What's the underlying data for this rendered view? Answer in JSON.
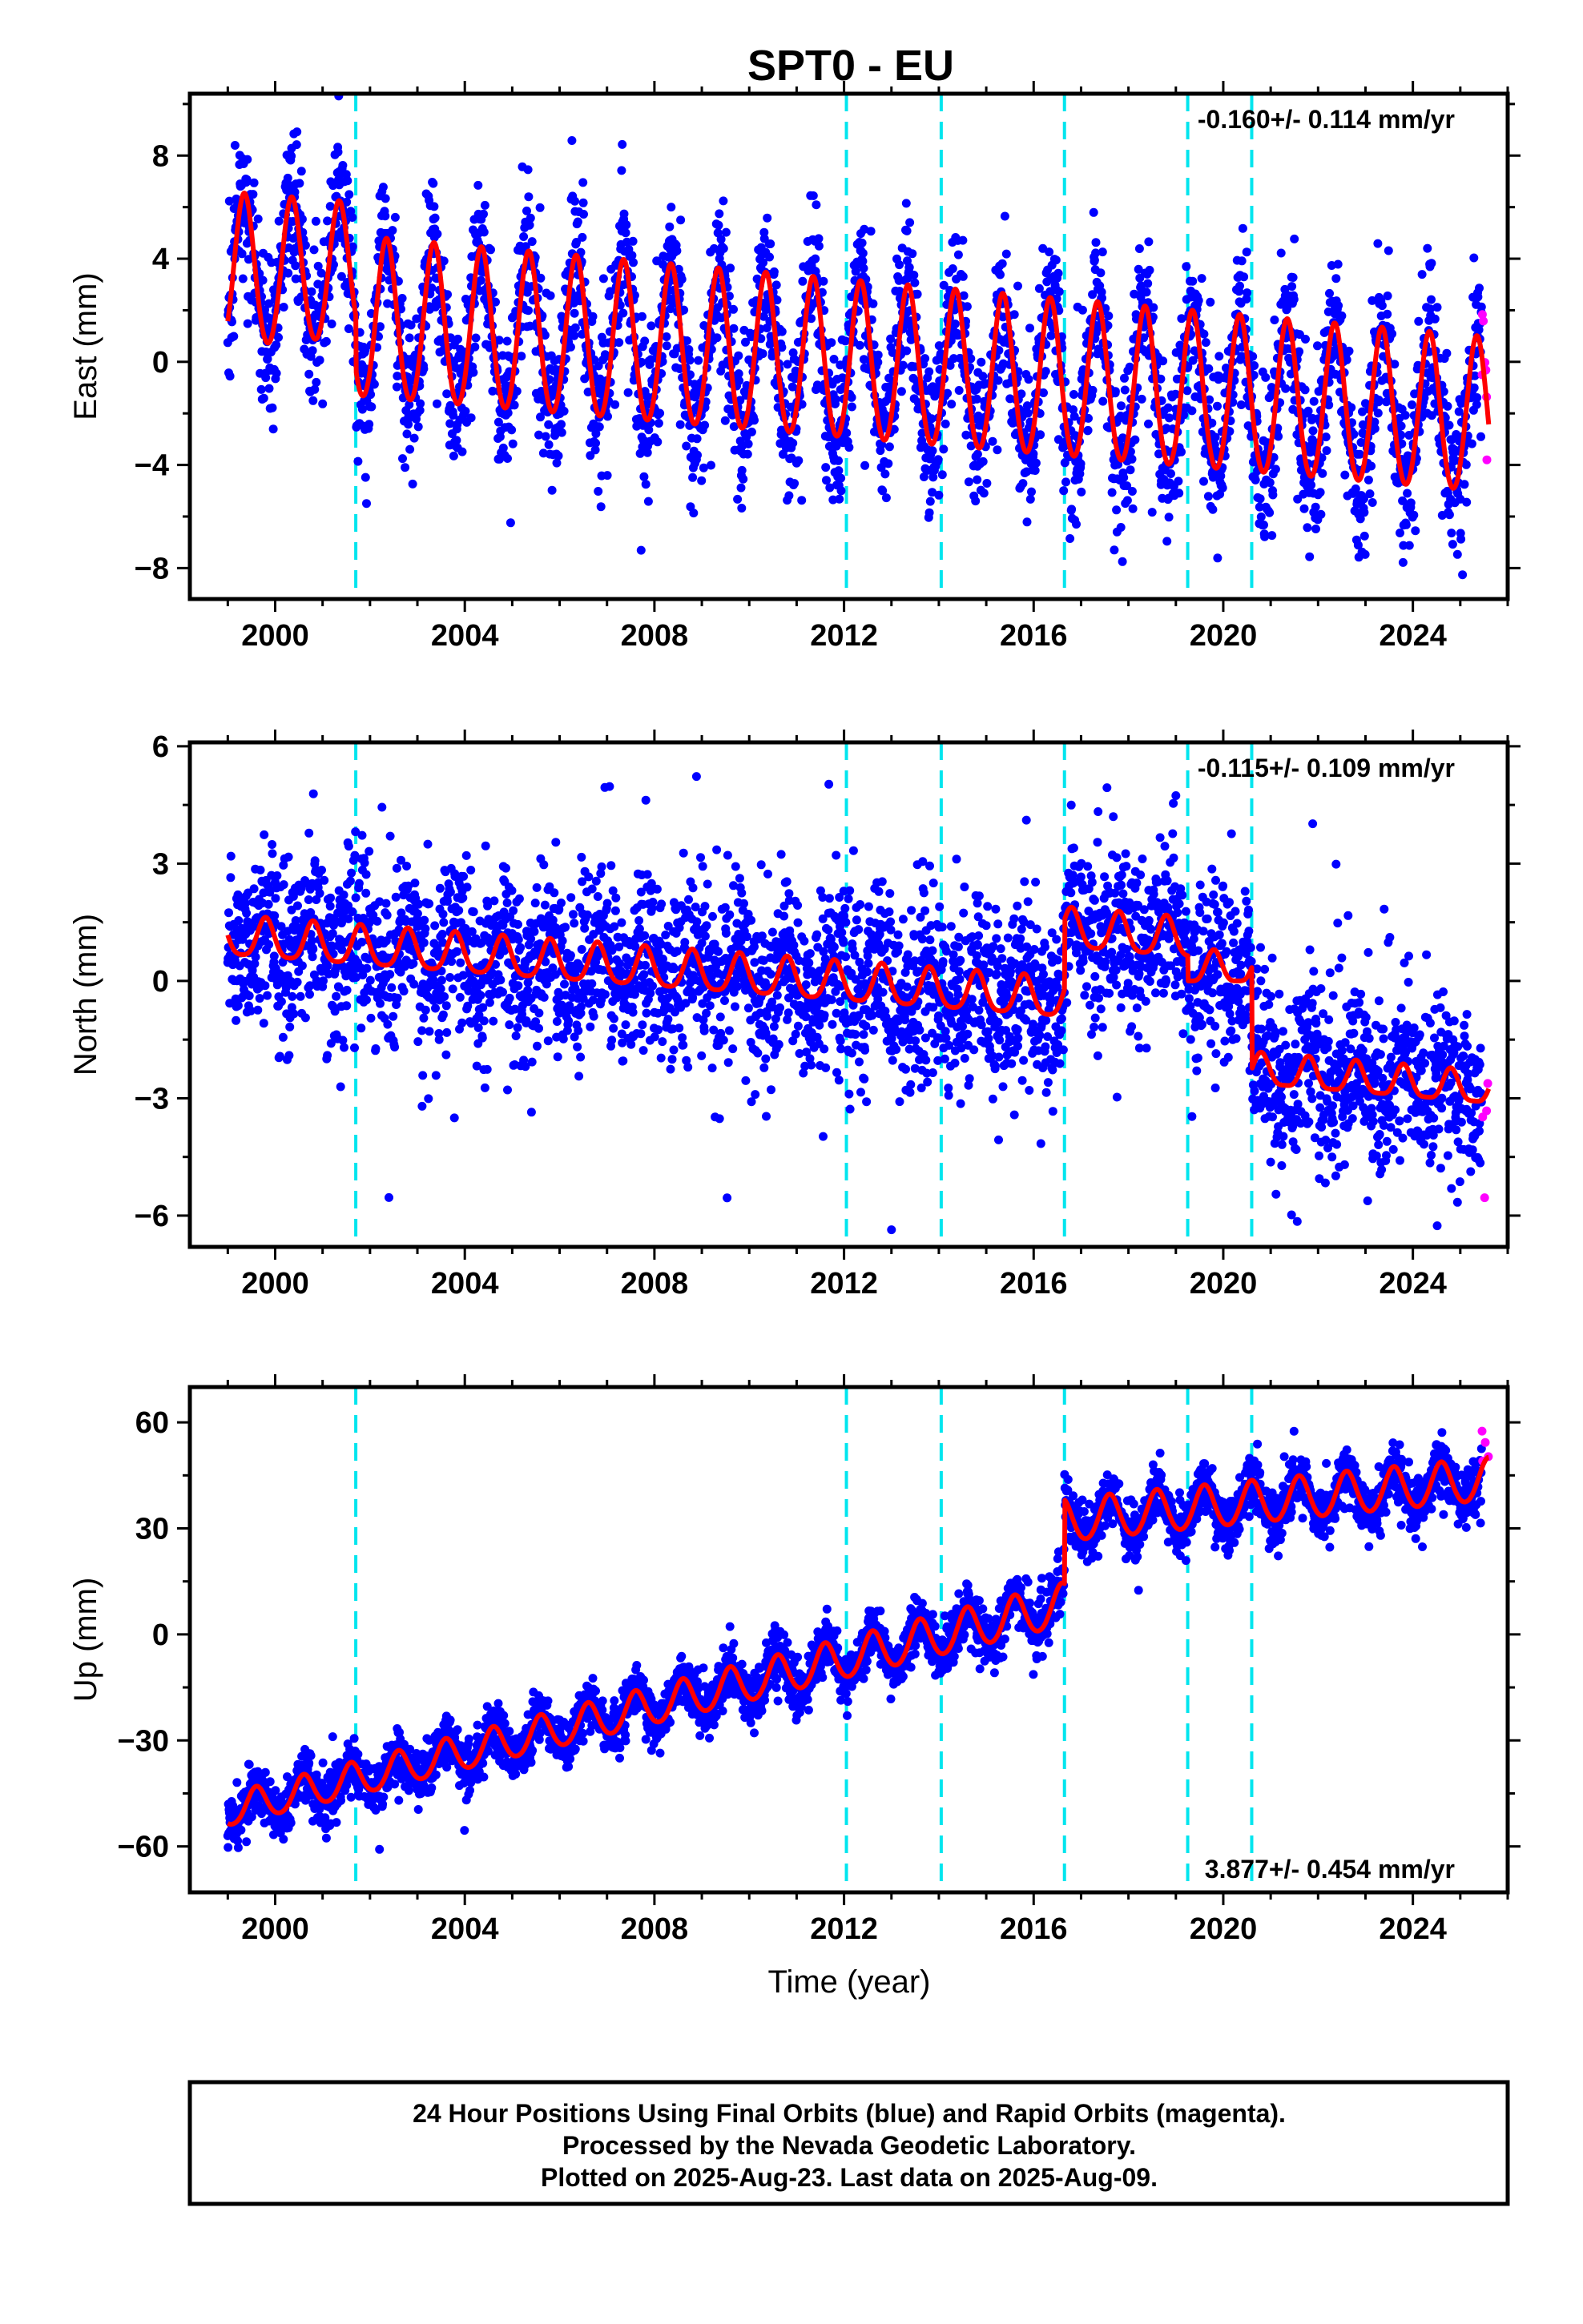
{
  "chart_data": {
    "type": "scatter",
    "title": "SPT0 - EU",
    "xlabel": "Time (year)",
    "xlim": [
      1998.2,
      2026.0
    ],
    "x_ticks": [
      2000,
      2004,
      2008,
      2012,
      2016,
      2020,
      2024
    ],
    "x_tick_labels": [
      "2000",
      "2004",
      "2008",
      "2012",
      "2016",
      "2020",
      "2024"
    ],
    "data_start": 1999.0,
    "data_end": 2025.6,
    "rapid_start": 2025.45,
    "vertical_lines": [
      2001.7,
      2012.05,
      2014.05,
      2016.65,
      2019.25,
      2020.6
    ],
    "colors": {
      "final_orbits": "#0000ff",
      "rapid_orbits": "#ff00ff",
      "model": "#ff0000",
      "equipment_change": "#00e5ee"
    },
    "panels": [
      {
        "ylabel": "East (mm)",
        "ylim": [
          -9.2,
          10.4
        ],
        "y_ticks": [
          -8,
          -4,
          0,
          4,
          8
        ],
        "y_tick_labels": [
          "−8",
          "−4",
          "0",
          "4",
          "8"
        ],
        "rate_text": "-0.160+/- 0.114 mm/yr",
        "rate_position": "top-right",
        "model": {
          "segments": [
            {
              "start": 1999.0,
              "end": 2001.7,
              "offset": 3.4,
              "rate": 0.0,
              "amplitude": 3.0,
              "amplitude_end": 2.6
            },
            {
              "start": 2001.7,
              "end": 2025.6,
              "offset": 1.6,
              "rate": -0.16,
              "amplitude": 3.1,
              "amplitude_end": 3.0
            }
          ],
          "phase_peak": 0.35,
          "semiannual_amplitude": 0.2
        },
        "scatter_sigma": 1.5,
        "outlier_sigma": 3.0
      },
      {
        "ylabel": "North (mm)",
        "ylim": [
          -6.8,
          6.1
        ],
        "y_ticks": [
          -6,
          -3,
          0,
          3,
          6
        ],
        "y_tick_labels": [
          "−6",
          "−3",
          "0",
          "3",
          "6"
        ],
        "rate_text": "-0.115+/- 0.109 mm/yr",
        "rate_position": "top-right",
        "model": {
          "segments": [
            {
              "start": 1999.0,
              "end": 2016.65,
              "offset": 1.1,
              "rate": -0.09,
              "amplitude": 0.5,
              "amplitude_end": 0.5
            },
            {
              "start": 2016.65,
              "end": 2019.25,
              "offset": 1.3,
              "rate": -0.1,
              "amplitude": 0.5,
              "amplitude_end": 0.5
            },
            {
              "start": 2019.25,
              "end": 2020.6,
              "offset": 0.3,
              "rate": 0.0,
              "amplitude": 0.4,
              "amplitude_end": 0.4
            },
            {
              "start": 2020.6,
              "end": 2025.6,
              "offset": -2.3,
              "rate": -0.1,
              "amplitude": 0.4,
              "amplitude_end": 0.4
            }
          ],
          "phase_peak": 0.8,
          "semiannual_amplitude": 0.1
        },
        "scatter_sigma": 1.1,
        "outlier_sigma": 2.4
      },
      {
        "ylabel": "Up (mm)",
        "ylim": [
          -73,
          70
        ],
        "y_ticks": [
          -60,
          -30,
          0,
          30,
          60
        ],
        "y_tick_labels": [
          "−60",
          "−30",
          "0",
          "30",
          "60"
        ],
        "rate_text": "3.877+/- 0.454 mm/yr",
        "rate_position": "bottom-right",
        "model": {
          "segments": [
            {
              "start": 1999.0,
              "end": 2016.65,
              "offset": -50.0,
              "rate": 3.3,
              "amplitude": 4.5,
              "amplitude_end": 6.0
            },
            {
              "start": 2016.65,
              "end": 2025.6,
              "offset": 32.0,
              "rate": 1.3,
              "amplitude": 6.0,
              "amplitude_end": 6.0
            }
          ],
          "phase_peak": 0.6,
          "semiannual_amplitude": 0.5
        },
        "scatter_sigma": 3.8,
        "outlier_sigma": 7.0
      }
    ]
  },
  "footer": {
    "line1": "24 Hour Positions Using Final Orbits (blue) and Rapid Orbits (magenta).",
    "line2": "Processed by the Nevada Geodetic Laboratory.",
    "line3": "Plotted on 2025-Aug-23. Last data on 2025-Aug-09."
  }
}
